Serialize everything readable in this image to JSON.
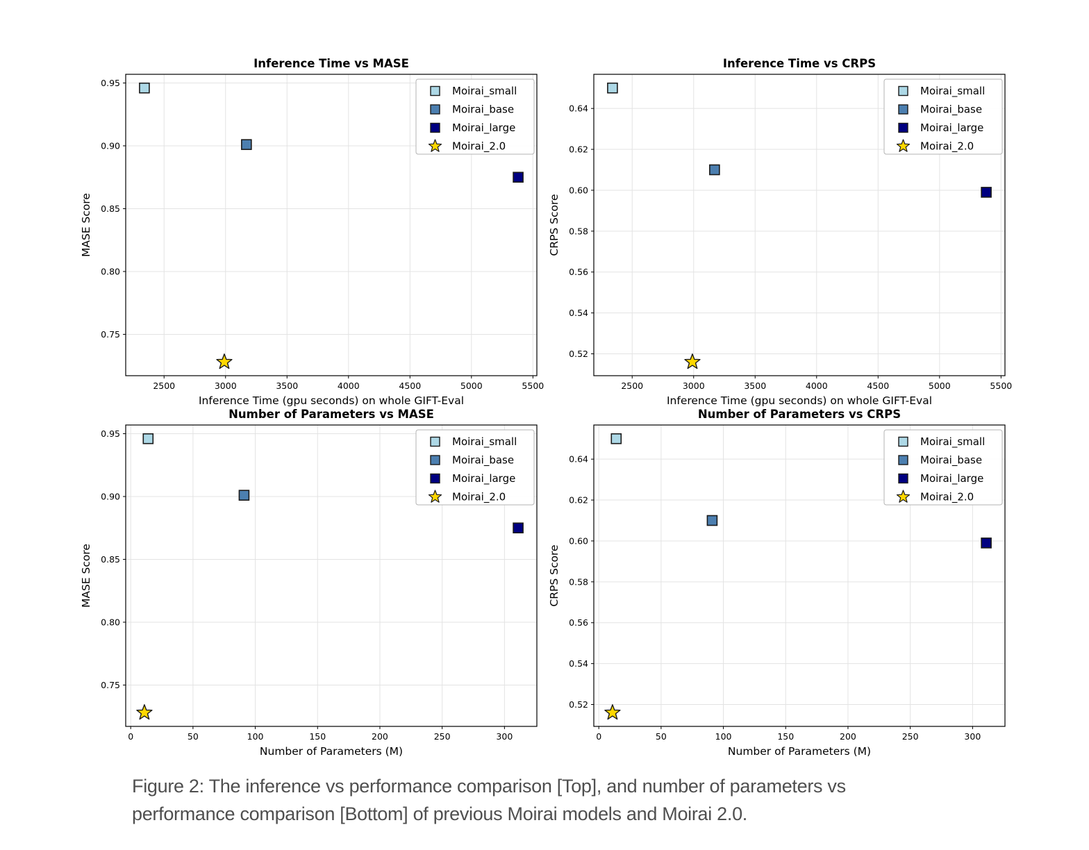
{
  "figure": {
    "caption_line1": "Figure 2: The inference vs performance comparison [Top], and number of parameters vs",
    "caption_line2": "performance comparison [Bottom] of previous Moirai models and Moirai 2.0."
  },
  "models": [
    {
      "label": "Moirai_small",
      "marker": "square",
      "color": "#ADD8E6"
    },
    {
      "label": "Moirai_base",
      "marker": "square",
      "color": "#4C7FB0"
    },
    {
      "label": "Moirai_large",
      "marker": "square",
      "color": "#000080"
    },
    {
      "label": "Moirai_2.0",
      "marker": "star",
      "color": "#FFD700"
    }
  ],
  "style": {
    "marker_edge": "#1a1a1a",
    "grid_color": "#e3e3e3",
    "frame_color": "#000000",
    "legend_border": "#b3b3b3",
    "legend_bg": "#ffffff",
    "caption_color": "#4f4f4f"
  },
  "metrics": {
    "inference_time_gpu_seconds": [
      2340,
      3170,
      5380,
      2990
    ],
    "parameters_M": [
      14,
      91,
      311,
      11
    ],
    "MASE": [
      0.946,
      0.901,
      0.875,
      0.728
    ],
    "CRPS": [
      0.65,
      0.61,
      0.599,
      0.516
    ]
  },
  "chart_data": [
    {
      "type": "scatter",
      "title": "Inference Time vs MASE",
      "xlabel": "Inference Time (gpu seconds) on whole GIFT-Eval",
      "ylabel": "MASE Score",
      "xlim": [
        2188,
        5532
      ],
      "ylim": [
        0.7171,
        0.9569
      ],
      "xticks": [
        2500,
        3000,
        3500,
        4000,
        4500,
        5000,
        5500
      ],
      "yticks": [
        0.75,
        0.8,
        0.85,
        0.9,
        0.95
      ],
      "ytick_decimals": 2,
      "grid": true,
      "legend_position": "upper right",
      "legend_entries": [
        "Moirai_small",
        "Moirai_base",
        "Moirai_large",
        "Moirai_2.0"
      ],
      "points": [
        {
          "label": "Moirai_small",
          "x": 2340,
          "y": 0.946
        },
        {
          "label": "Moirai_base",
          "x": 3170,
          "y": 0.901
        },
        {
          "label": "Moirai_large",
          "x": 5380,
          "y": 0.875
        },
        {
          "label": "Moirai_2.0",
          "x": 2990,
          "y": 0.728
        }
      ]
    },
    {
      "type": "scatter",
      "title": "Inference Time vs CRPS",
      "xlabel": "Inference Time (gpu seconds) on whole GIFT-Eval",
      "ylabel": "CRPS Score",
      "xlim": [
        2188,
        5532
      ],
      "ylim": [
        0.5093,
        0.6567
      ],
      "xticks": [
        2500,
        3000,
        3500,
        4000,
        4500,
        5000,
        5500
      ],
      "yticks": [
        0.52,
        0.54,
        0.56,
        0.58,
        0.6,
        0.62,
        0.64
      ],
      "ytick_decimals": 2,
      "grid": true,
      "legend_position": "upper right",
      "legend_entries": [
        "Moirai_small",
        "Moirai_base",
        "Moirai_large",
        "Moirai_2.0"
      ],
      "points": [
        {
          "label": "Moirai_small",
          "x": 2340,
          "y": 0.65
        },
        {
          "label": "Moirai_base",
          "x": 3170,
          "y": 0.61
        },
        {
          "label": "Moirai_large",
          "x": 5380,
          "y": 0.599
        },
        {
          "label": "Moirai_2.0",
          "x": 2990,
          "y": 0.516
        }
      ]
    },
    {
      "type": "scatter",
      "title": "Number of Parameters vs MASE",
      "xlabel": "Number of Parameters (M)",
      "ylabel": "MASE Score",
      "xlim": [
        -4,
        326
      ],
      "ylim": [
        0.7171,
        0.9569
      ],
      "xticks": [
        0,
        50,
        100,
        150,
        200,
        250,
        300
      ],
      "yticks": [
        0.75,
        0.8,
        0.85,
        0.9,
        0.95
      ],
      "ytick_decimals": 2,
      "grid": true,
      "legend_position": "upper right",
      "legend_entries": [
        "Moirai_small",
        "Moirai_base",
        "Moirai_large",
        "Moirai_2.0"
      ],
      "points": [
        {
          "label": "Moirai_small",
          "x": 14,
          "y": 0.946
        },
        {
          "label": "Moirai_base",
          "x": 91,
          "y": 0.901
        },
        {
          "label": "Moirai_large",
          "x": 311,
          "y": 0.875
        },
        {
          "label": "Moirai_2.0",
          "x": 11,
          "y": 0.728
        }
      ]
    },
    {
      "type": "scatter",
      "title": "Number of Parameters vs CRPS",
      "xlabel": "Number of Parameters (M)",
      "ylabel": "CRPS Score",
      "xlim": [
        -4,
        326
      ],
      "ylim": [
        0.5093,
        0.6567
      ],
      "xticks": [
        0,
        50,
        100,
        150,
        200,
        250,
        300
      ],
      "yticks": [
        0.52,
        0.54,
        0.56,
        0.58,
        0.6,
        0.62,
        0.64
      ],
      "ytick_decimals": 2,
      "grid": true,
      "legend_position": "upper right",
      "legend_entries": [
        "Moirai_small",
        "Moirai_base",
        "Moirai_large",
        "Moirai_2.0"
      ],
      "points": [
        {
          "label": "Moirai_small",
          "x": 14,
          "y": 0.65
        },
        {
          "label": "Moirai_base",
          "x": 91,
          "y": 0.61
        },
        {
          "label": "Moirai_large",
          "x": 311,
          "y": 0.599
        },
        {
          "label": "Moirai_2.0",
          "x": 11,
          "y": 0.516
        }
      ]
    }
  ]
}
